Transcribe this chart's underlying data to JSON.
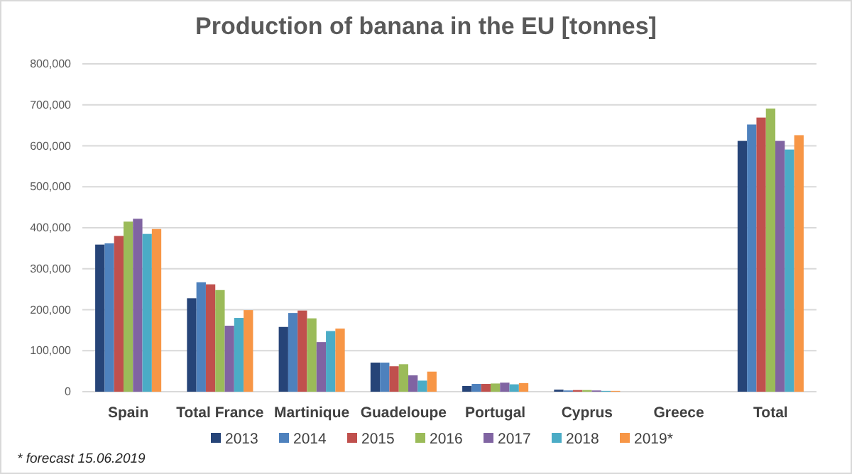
{
  "chart_data": {
    "type": "bar",
    "title": "Production of banana in the EU [tonnes]",
    "categories": [
      "Spain",
      "Total France",
      "Martinique",
      "Guadeloupe",
      "Portugal",
      "Cyprus",
      "Greece",
      "Total"
    ],
    "series": [
      {
        "name": "2013",
        "color": "#264478",
        "values": [
          359000,
          228000,
          158000,
          71000,
          14000,
          5000,
          0,
          612000
        ]
      },
      {
        "name": "2014",
        "color": "#4e81bd",
        "values": [
          362000,
          267000,
          192000,
          71000,
          19000,
          3000,
          0,
          652000
        ]
      },
      {
        "name": "2015",
        "color": "#c0504d",
        "values": [
          380000,
          262000,
          198000,
          62000,
          19000,
          4000,
          0,
          669000
        ]
      },
      {
        "name": "2016",
        "color": "#9bbb59",
        "values": [
          415000,
          248000,
          179000,
          67000,
          20000,
          4000,
          0,
          691000
        ]
      },
      {
        "name": "2017",
        "color": "#8064a2",
        "values": [
          422000,
          161000,
          121000,
          40000,
          22000,
          3000,
          0,
          612000
        ]
      },
      {
        "name": "2018",
        "color": "#4bacc6",
        "values": [
          385000,
          180000,
          148000,
          27000,
          18000,
          2000,
          0,
          591000
        ]
      },
      {
        "name": "2019*",
        "color": "#f79646",
        "values": [
          397000,
          199000,
          154000,
          49000,
          21000,
          2000,
          0,
          626000
        ]
      }
    ],
    "ylim": [
      0,
      800000
    ],
    "yticks": [
      0,
      {
        "value": 100000,
        "label": "100,000"
      },
      {
        "value": 200000,
        "label": "200,000"
      },
      {
        "value": 300000,
        "label": "300,000"
      },
      {
        "value": 400000,
        "label": "400,000"
      },
      {
        "value": 500000,
        "label": "500,000"
      },
      {
        "value": 600000,
        "label": "600,000"
      },
      {
        "value": 700000,
        "label": "700,000"
      },
      {
        "value": 800000,
        "label": "800,000"
      }
    ],
    "grid": "y",
    "legend": "bottom",
    "annotations": [
      "* forecast 15.06.2019"
    ]
  }
}
